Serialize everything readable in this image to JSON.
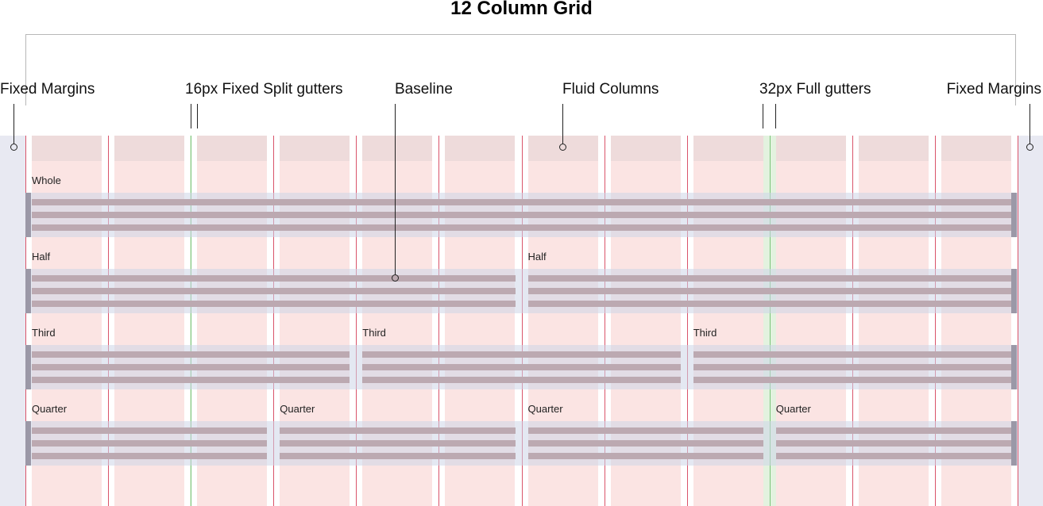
{
  "title": "12 Column Grid",
  "callouts": {
    "left_margin": "Fixed Margins",
    "split_gutters": "16px Fixed Split gutters",
    "baseline": "Baseline",
    "fluid_columns": "Fluid Columns",
    "full_gutters": "32px Full gutters",
    "right_margin": "Fixed Margins"
  },
  "grid": {
    "columns": 12,
    "rows": [
      {
        "label": "Whole",
        "span_columns": 12,
        "blocks": [
          "Whole"
        ]
      },
      {
        "label": "Half",
        "span_columns": 6,
        "blocks": [
          "Half",
          "Half"
        ]
      },
      {
        "label": "Third",
        "span_columns": 4,
        "blocks": [
          "Third",
          "Third",
          "Third"
        ]
      },
      {
        "label": "Quarter",
        "span_columns": 3,
        "blocks": [
          "Quarter",
          "Quarter",
          "Quarter",
          "Quarter"
        ]
      }
    ]
  },
  "colors": {
    "column_fill": "#fbe4e3",
    "column_header": "#eedbdb",
    "margin_fill": "#e8e9f2",
    "gutter_line": "#d9546a",
    "full_gutter_fill": "#e3f2df",
    "baseline_bar": "#bca9b1"
  }
}
